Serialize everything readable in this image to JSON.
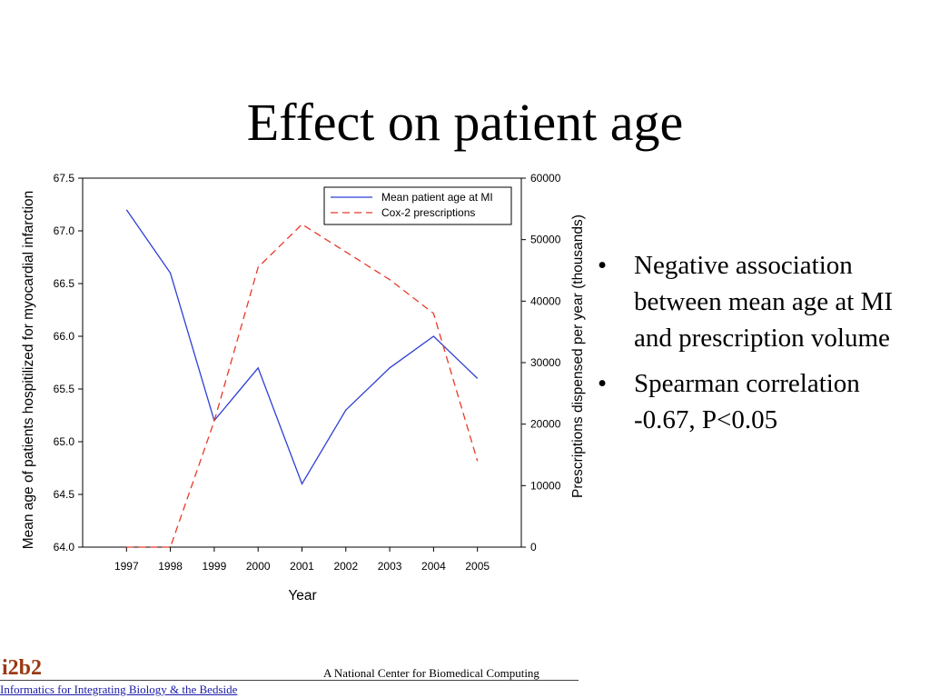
{
  "slide": {
    "title": "Effect on patient age",
    "bullets": [
      "Negative association between mean age at MI and prescription volume",
      "Spearman correlation -0.67, P<0.05"
    ]
  },
  "footer": {
    "brand": "i2b2",
    "center_text": "A National Center for Biomedical Computing",
    "link_text": "Informatics for Integrating Biology & the Bedside"
  },
  "colors": {
    "age_series": "#2f3fd6",
    "cox2_series": "#e83a2a",
    "brand": "#9a3a12",
    "link": "#1a1aa6"
  },
  "chart_data": {
    "type": "line",
    "xlabel": "Year",
    "ylabel_left": "Mean age of patients hospitilized for myocardial infarction",
    "ylabel_right": "Prescriptions dispensed per year (thousands)",
    "categories": [
      "1997",
      "1998",
      "1999",
      "2000",
      "2001",
      "2002",
      "2003",
      "2004",
      "2005"
    ],
    "ylim_left": [
      64.0,
      67.5
    ],
    "yticks_left": [
      "64.0",
      "64.5",
      "65.0",
      "65.5",
      "66.0",
      "66.5",
      "67.0",
      "67.5"
    ],
    "ylim_right": [
      0,
      60000
    ],
    "yticks_right": [
      "0",
      "10000",
      "20000",
      "30000",
      "40000",
      "50000",
      "60000"
    ],
    "legend_position": "top-right",
    "grid": false,
    "series": [
      {
        "name": "Mean patient age at MI",
        "axis": "left",
        "style": "solid",
        "values": [
          67.2,
          66.6,
          65.2,
          65.7,
          64.6,
          65.3,
          65.7,
          66.0,
          65.6
        ]
      },
      {
        "name": "Cox-2 prescriptions",
        "axis": "right",
        "style": "dashed",
        "values": [
          0,
          0,
          20500,
          45500,
          52500,
          48000,
          43500,
          38000,
          14000
        ]
      }
    ]
  }
}
